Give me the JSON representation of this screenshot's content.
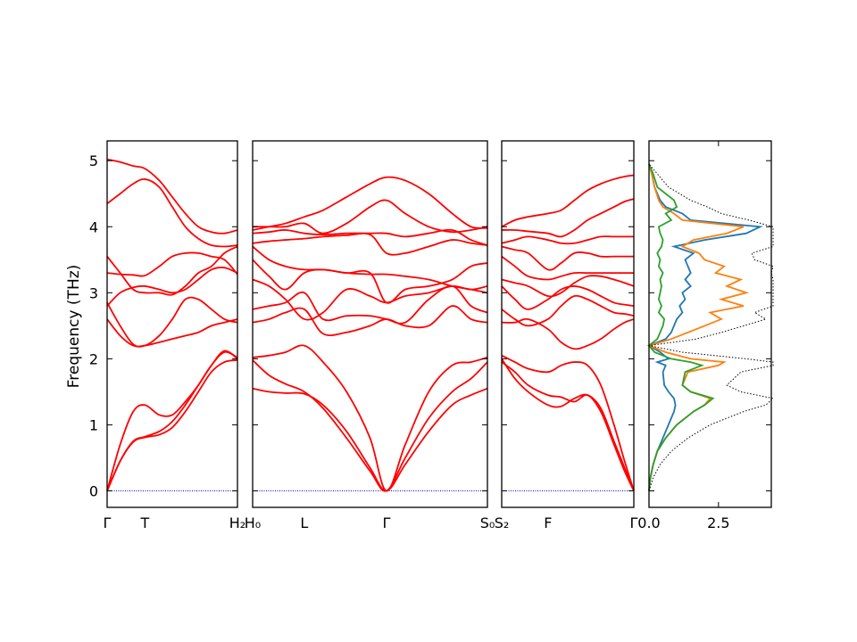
{
  "chart_data": {
    "type": "line",
    "ylabel": "Frequency (THz)",
    "y_ticks": [
      "0",
      "1",
      "2",
      "3",
      "4",
      "5"
    ],
    "ylim": [
      -0.25,
      5.3
    ],
    "band_color": "#ff0000",
    "zero_line_color": "#0000cc",
    "dos_xticks": [
      "0.0",
      "2.5"
    ],
    "dos_xlim": [
      0,
      4.4
    ],
    "segments": [
      {
        "labels": [
          "Γ",
          "T",
          "H₂"
        ],
        "xlim": [
          0,
          1
        ],
        "label_pos": [
          0,
          0.29,
          1
        ],
        "x": [
          0,
          0.1,
          0.2,
          0.29,
          0.4,
          0.5,
          0.6,
          0.7,
          0.8,
          0.9,
          1.0
        ],
        "bands": [
          [
            0,
            0.45,
            0.74,
            0.81,
            0.85,
            0.96,
            1.2,
            1.5,
            1.8,
            1.95,
            1.98
          ],
          [
            0,
            0.45,
            0.75,
            0.82,
            0.9,
            1.05,
            1.3,
            1.6,
            1.9,
            2.1,
            2.02
          ],
          [
            0,
            0.7,
            1.2,
            1.3,
            1.15,
            1.15,
            1.35,
            1.6,
            1.9,
            2.12,
            2.0
          ],
          [
            2.6,
            2.35,
            2.2,
            2.2,
            2.25,
            2.3,
            2.35,
            2.4,
            2.5,
            2.55,
            2.6
          ],
          [
            2.85,
            2.5,
            2.22,
            2.2,
            2.35,
            2.6,
            2.9,
            2.9,
            2.75,
            2.6,
            2.55
          ],
          [
            2.8,
            3.0,
            3.08,
            3.1,
            3.05,
            3.0,
            3.05,
            3.2,
            3.35,
            3.38,
            3.3
          ],
          [
            3.55,
            3.3,
            3.05,
            3.0,
            3.0,
            2.97,
            3.1,
            3.3,
            3.4,
            3.6,
            3.7
          ],
          [
            3.3,
            3.28,
            3.27,
            3.26,
            3.4,
            3.55,
            3.6,
            3.6,
            3.55,
            3.5,
            3.28
          ],
          [
            4.35,
            4.5,
            4.65,
            4.72,
            4.6,
            4.3,
            4.0,
            3.82,
            3.72,
            3.7,
            3.72
          ],
          [
            5.02,
            4.98,
            4.92,
            4.88,
            4.7,
            4.45,
            4.2,
            4.0,
            3.92,
            3.9,
            3.95
          ]
        ]
      },
      {
        "labels": [
          "H₀",
          "L",
          "Γ",
          "S₀"
        ],
        "xlim": [
          0,
          1
        ],
        "label_pos": [
          0,
          0.22,
          0.57,
          1
        ],
        "x": [
          0,
          0.07,
          0.14,
          0.22,
          0.3,
          0.4,
          0.5,
          0.57,
          0.65,
          0.75,
          0.85,
          0.93,
          1.0
        ],
        "bands": [
          [
            1.55,
            1.5,
            1.48,
            1.47,
            1.3,
            0.9,
            0.35,
            0,
            0.4,
            0.9,
            1.3,
            1.45,
            1.55
          ],
          [
            1.98,
            1.75,
            1.62,
            1.5,
            1.25,
            0.8,
            0.3,
            0,
            0.5,
            1.1,
            1.5,
            1.7,
            1.95
          ],
          [
            2.02,
            2.05,
            2.1,
            2.2,
            1.95,
            1.5,
            0.8,
            0,
            0.7,
            1.5,
            1.9,
            1.95,
            2.02
          ],
          [
            2.55,
            2.6,
            2.7,
            2.75,
            2.38,
            2.4,
            2.5,
            2.6,
            2.5,
            2.5,
            2.8,
            2.6,
            2.55
          ],
          [
            2.75,
            2.8,
            2.85,
            3.0,
            2.6,
            2.65,
            2.65,
            2.6,
            2.55,
            2.9,
            3.1,
            2.8,
            2.7
          ],
          [
            3.2,
            3.1,
            2.9,
            2.6,
            2.7,
            3.05,
            2.95,
            2.85,
            2.95,
            3.0,
            3.1,
            3.05,
            3.1
          ],
          [
            3.5,
            3.25,
            3.05,
            3.3,
            3.35,
            3.3,
            3.3,
            2.85,
            3.05,
            3.1,
            3.2,
            3.4,
            3.45
          ],
          [
            3.7,
            3.5,
            3.4,
            3.35,
            3.35,
            3.3,
            3.28,
            3.28,
            3.25,
            3.2,
            3.1,
            3.05,
            3.0
          ],
          [
            3.75,
            3.78,
            3.8,
            3.82,
            3.85,
            3.87,
            3.88,
            3.6,
            3.6,
            3.7,
            3.8,
            3.75,
            3.72
          ],
          [
            3.9,
            3.92,
            3.95,
            3.9,
            3.88,
            3.9,
            3.9,
            3.9,
            3.85,
            3.9,
            3.95,
            3.8,
            3.72
          ],
          [
            4.0,
            4.0,
            4.0,
            4.05,
            3.9,
            4.05,
            4.3,
            4.4,
            4.2,
            4.0,
            3.92,
            3.95,
            4.0
          ],
          [
            3.95,
            4.0,
            4.05,
            4.15,
            4.25,
            4.45,
            4.65,
            4.75,
            4.7,
            4.5,
            4.2,
            4.0,
            3.98
          ]
        ]
      },
      {
        "labels": [
          "S₂",
          "F",
          "Γ"
        ],
        "xlim": [
          0,
          1
        ],
        "label_pos": [
          0,
          0.35,
          1
        ],
        "x": [
          0,
          0.1,
          0.2,
          0.35,
          0.45,
          0.55,
          0.65,
          0.75,
          0.85,
          0.93,
          1.0
        ],
        "bands": [
          [
            1.95,
            1.8,
            1.6,
            1.45,
            1.42,
            1.35,
            1.45,
            1.2,
            0.7,
            0.3,
            0
          ],
          [
            2.0,
            1.7,
            1.5,
            1.3,
            1.28,
            1.4,
            1.45,
            1.25,
            0.75,
            0.35,
            0
          ],
          [
            2.05,
            1.95,
            1.85,
            1.8,
            1.9,
            1.95,
            1.9,
            1.6,
            1.0,
            0.45,
            0
          ],
          [
            2.55,
            2.55,
            2.6,
            2.45,
            2.25,
            2.15,
            2.2,
            2.3,
            2.45,
            2.55,
            2.6
          ],
          [
            2.75,
            2.6,
            2.5,
            2.6,
            2.8,
            2.95,
            2.9,
            2.8,
            2.7,
            2.68,
            2.65
          ],
          [
            3.1,
            2.9,
            2.75,
            2.9,
            3.05,
            3.1,
            3.05,
            2.95,
            2.85,
            2.82,
            2.8
          ],
          [
            3.2,
            3.15,
            3.1,
            2.95,
            3.0,
            3.15,
            3.25,
            3.25,
            3.2,
            3.15,
            3.1
          ],
          [
            3.55,
            3.4,
            3.25,
            3.2,
            3.25,
            3.3,
            3.3,
            3.3,
            3.3,
            3.3,
            3.3
          ],
          [
            3.7,
            3.65,
            3.6,
            3.35,
            3.45,
            3.6,
            3.6,
            3.55,
            3.55,
            3.55,
            3.55
          ],
          [
            3.75,
            3.8,
            3.85,
            3.8,
            3.75,
            3.75,
            3.8,
            3.85,
            3.85,
            3.85,
            3.85
          ],
          [
            3.95,
            3.95,
            3.93,
            3.9,
            3.85,
            3.95,
            4.1,
            4.2,
            4.3,
            4.38,
            4.42
          ],
          [
            4.0,
            4.1,
            4.15,
            4.2,
            4.25,
            4.4,
            4.55,
            4.65,
            4.72,
            4.76,
            4.78
          ]
        ]
      }
    ],
    "dos": {
      "freqs": [
        0,
        0.2,
        0.4,
        0.6,
        0.8,
        1.0,
        1.2,
        1.3,
        1.4,
        1.5,
        1.6,
        1.8,
        1.9,
        1.95,
        2.0,
        2.1,
        2.2,
        2.3,
        2.4,
        2.5,
        2.6,
        2.7,
        2.8,
        2.9,
        3.0,
        3.1,
        3.2,
        3.3,
        3.4,
        3.5,
        3.6,
        3.7,
        3.8,
        3.9,
        4.0,
        4.1,
        4.2,
        4.3,
        4.4,
        4.6,
        4.8,
        4.95
      ],
      "series": [
        {
          "color": "#1f77b4",
          "values": [
            0,
            0.05,
            0.15,
            0.3,
            0.5,
            0.7,
            0.9,
            0.95,
            0.9,
            0.7,
            0.55,
            0.5,
            0.6,
            0.3,
            0.7,
            0.4,
            0,
            0.6,
            0.8,
            0.9,
            1.0,
            1.2,
            1.1,
            1.3,
            1.2,
            1.5,
            1.3,
            1.5,
            1.4,
            1.3,
            1.6,
            0.9,
            2.0,
            3.5,
            4.0,
            1.5,
            1.2,
            0.6,
            0.4,
            0.2,
            0.1,
            0
          ]
        },
        {
          "color": "#ff7f0e",
          "values": [
            0,
            0.05,
            0.15,
            0.3,
            0.6,
            1.0,
            1.6,
            2.0,
            2.2,
            1.5,
            1.2,
            1.4,
            2.5,
            2.7,
            1.5,
            0.6,
            0,
            0.8,
            1.4,
            2.0,
            2.6,
            2.2,
            3.4,
            2.6,
            3.5,
            2.8,
            3.3,
            2.4,
            2.7,
            2.0,
            1.8,
            1.2,
            1.6,
            2.8,
            3.4,
            1.2,
            0.9,
            0.5,
            0.35,
            0.2,
            0.1,
            0
          ]
        },
        {
          "color": "#2ca02c",
          "values": [
            0,
            0.05,
            0.15,
            0.3,
            0.6,
            1.0,
            1.6,
            2.0,
            2.3,
            1.5,
            1.2,
            1.3,
            1.9,
            1.5,
            0.8,
            0.2,
            0,
            0.3,
            0.4,
            0.5,
            0.55,
            0.35,
            0.45,
            0.35,
            0.4,
            0.45,
            0.4,
            0.5,
            0.35,
            0.4,
            0.3,
            0.45,
            0.5,
            0.4,
            0.35,
            0.8,
            0.6,
            1.0,
            0.9,
            0.3,
            0.15,
            0
          ]
        },
        {
          "color": "#000000",
          "values": [
            0,
            0.15,
            0.4,
            0.8,
            1.4,
            2.2,
            3.4,
            4.2,
            4.5,
            3.3,
            2.8,
            3.3,
            4.8,
            4.9,
            3.5,
            1.2,
            0,
            1.7,
            2.6,
            3.4,
            4.2,
            3.8,
            5.0,
            4.5,
            5.2,
            4.8,
            5.4,
            4.4,
            4.8,
            3.8,
            3.7,
            4.6,
            4.6,
            5.4,
            7.0,
            3.6,
            2.6,
            2.1,
            1.5,
            0.7,
            0.3,
            0
          ]
        }
      ]
    }
  }
}
